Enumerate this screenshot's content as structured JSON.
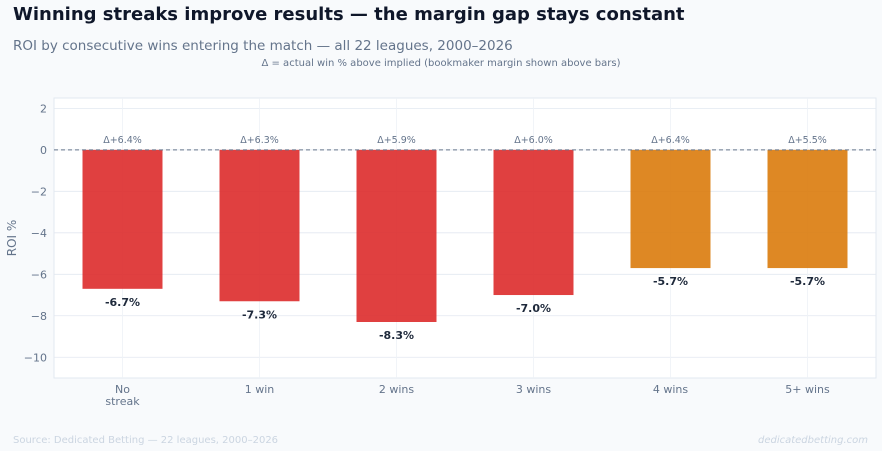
{
  "header": {
    "title": "Winning streaks improve results — the margin gap stays constant",
    "subtitle": "ROI by consecutive wins entering the match — all 22 leagues, 2000–2026",
    "note": "Δ = actual win % above implied (bookmaker margin shown above bars)"
  },
  "footer": {
    "source": "Source: Dedicated Betting — 22 leagues, 2000–2026",
    "brand": "dedicatedbetting.com"
  },
  "colors": {
    "red": "#dc2626",
    "orange": "#d97706",
    "zero_line": "#64748b",
    "grid": "#e2e8f0",
    "axis_text": "#64748b"
  },
  "chart_data": {
    "type": "bar",
    "ylabel": "ROI %",
    "ylim": [
      -11,
      2.5
    ],
    "yticks": [
      2,
      0,
      -2,
      -4,
      -6,
      -8,
      -10
    ],
    "ytick_labels": [
      "2",
      "0",
      "−2",
      "−4",
      "−6",
      "−8",
      "−10"
    ],
    "grid": true,
    "categories": [
      [
        "No",
        "streak"
      ],
      [
        "1 win"
      ],
      [
        "2 wins"
      ],
      [
        "3 wins"
      ],
      [
        "4 wins"
      ],
      [
        "5+ wins"
      ]
    ],
    "values": [
      -6.7,
      -7.3,
      -8.3,
      -7.0,
      -5.7,
      -5.7
    ],
    "value_labels": [
      "-6.7%",
      "-7.3%",
      "-8.3%",
      "-7.0%",
      "-5.7%",
      "-5.7%"
    ],
    "delta_labels": [
      "Δ+6.4%",
      "Δ+6.3%",
      "Δ+5.9%",
      "Δ+6.0%",
      "Δ+6.4%",
      "Δ+5.5%"
    ],
    "bar_colors": [
      "red",
      "red",
      "red",
      "red",
      "orange",
      "orange"
    ]
  }
}
